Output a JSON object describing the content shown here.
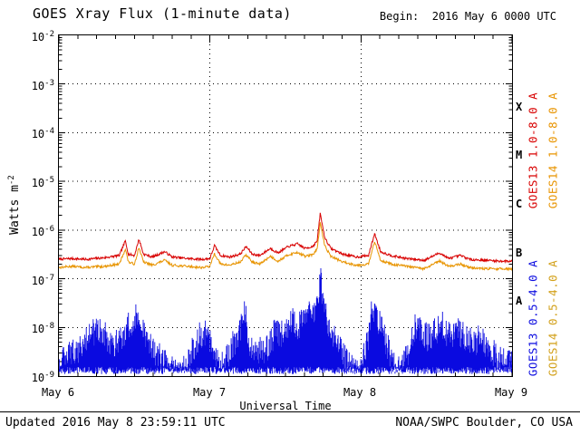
{
  "header": {
    "title": "GOES Xray Flux (1-minute data)",
    "begin": "Begin:  2016 May 6 0000 UTC"
  },
  "footer": {
    "updated": "Updated 2016 May 8 23:59:11 UTC",
    "source": "NOAA/SWPC Boulder, CO USA"
  },
  "chart_data": {
    "type": "line",
    "title": "GOES Xray Flux (1-minute data)",
    "xlabel": "Universal Time",
    "ylabel": "Watts m^-2",
    "ylabel_parts": {
      "base": "Watts m",
      "exp": "-2"
    },
    "x_tick_labels": [
      "May 6",
      "May 7",
      "May 8",
      "May 9"
    ],
    "x_tick_days": [
      0,
      1,
      2,
      3
    ],
    "y_tick_exponents": [
      -2,
      -3,
      -4,
      -5,
      -6,
      -7,
      -8,
      -9
    ],
    "ylim": [
      1e-09,
      0.01
    ],
    "x_range_days": [
      0,
      3
    ],
    "grid": {
      "h_exponents": [
        -3,
        -4,
        -5,
        -6,
        -7,
        -8
      ],
      "v_days": [
        1,
        2
      ]
    },
    "flare_classes": [
      {
        "label": "X",
        "mid_flux": 0.000316
      },
      {
        "label": "M",
        "mid_flux": 3.16e-05
      },
      {
        "label": "C",
        "mid_flux": 3.16e-06
      },
      {
        "label": "B",
        "mid_flux": 3.16e-07
      },
      {
        "label": "A",
        "mid_flux": 3.16e-08
      }
    ],
    "series": [
      {
        "name": "GOES13 1.0-8.0 A",
        "color": "#d80000",
        "render": "line",
        "points": [
          [
            0,
            2.5e-07
          ],
          [
            0.08,
            2.6e-07
          ],
          [
            0.18,
            2.5e-07
          ],
          [
            0.3,
            2.7e-07
          ],
          [
            0.4,
            3e-07
          ],
          [
            0.44,
            6e-07
          ],
          [
            0.46,
            3.2e-07
          ],
          [
            0.5,
            3e-07
          ],
          [
            0.53,
            6.5e-07
          ],
          [
            0.56,
            3.2e-07
          ],
          [
            0.62,
            2.8e-07
          ],
          [
            0.7,
            3.6e-07
          ],
          [
            0.75,
            2.8e-07
          ],
          [
            0.85,
            2.6e-07
          ],
          [
            0.95,
            2.5e-07
          ],
          [
            1.0,
            2.6e-07
          ],
          [
            1.03,
            4.8e-07
          ],
          [
            1.07,
            3e-07
          ],
          [
            1.13,
            2.8e-07
          ],
          [
            1.2,
            3.2e-07
          ],
          [
            1.24,
            4.6e-07
          ],
          [
            1.28,
            3.2e-07
          ],
          [
            1.33,
            3e-07
          ],
          [
            1.4,
            4.2e-07
          ],
          [
            1.45,
            3.4e-07
          ],
          [
            1.52,
            4.6e-07
          ],
          [
            1.58,
            5.2e-07
          ],
          [
            1.63,
            4.2e-07
          ],
          [
            1.68,
            4.6e-07
          ],
          [
            1.71,
            6e-07
          ],
          [
            1.73,
            2.2e-06
          ],
          [
            1.76,
            7e-07
          ],
          [
            1.8,
            4.2e-07
          ],
          [
            1.88,
            3.2e-07
          ],
          [
            1.97,
            2.8e-07
          ],
          [
            2.05,
            3e-07
          ],
          [
            2.09,
            8.5e-07
          ],
          [
            2.13,
            3.6e-07
          ],
          [
            2.2,
            3e-07
          ],
          [
            2.3,
            2.6e-07
          ],
          [
            2.42,
            2.4e-07
          ],
          [
            2.52,
            3.4e-07
          ],
          [
            2.58,
            2.6e-07
          ],
          [
            2.66,
            3e-07
          ],
          [
            2.72,
            2.5e-07
          ],
          [
            2.82,
            2.4e-07
          ],
          [
            2.92,
            2.3e-07
          ],
          [
            3,
            2.3e-07
          ]
        ]
      },
      {
        "name": "GOES14 1.0-8.0 A",
        "color": "#e89400",
        "render": "line",
        "points": [
          [
            0,
            1.7e-07
          ],
          [
            0.08,
            1.8e-07
          ],
          [
            0.18,
            1.7e-07
          ],
          [
            0.3,
            1.8e-07
          ],
          [
            0.4,
            2e-07
          ],
          [
            0.44,
            4.1e-07
          ],
          [
            0.46,
            2.2e-07
          ],
          [
            0.5,
            2e-07
          ],
          [
            0.53,
            4.4e-07
          ],
          [
            0.56,
            2.2e-07
          ],
          [
            0.62,
            1.9e-07
          ],
          [
            0.7,
            2.4e-07
          ],
          [
            0.75,
            1.9e-07
          ],
          [
            0.85,
            1.8e-07
          ],
          [
            0.95,
            1.7e-07
          ],
          [
            1.0,
            1.8e-07
          ],
          [
            1.03,
            3.3e-07
          ],
          [
            1.07,
            2e-07
          ],
          [
            1.13,
            1.9e-07
          ],
          [
            1.2,
            2.2e-07
          ],
          [
            1.24,
            3.1e-07
          ],
          [
            1.28,
            2.2e-07
          ],
          [
            1.33,
            2e-07
          ],
          [
            1.4,
            2.9e-07
          ],
          [
            1.45,
            2.3e-07
          ],
          [
            1.52,
            3.1e-07
          ],
          [
            1.58,
            3.5e-07
          ],
          [
            1.63,
            2.9e-07
          ],
          [
            1.68,
            3.1e-07
          ],
          [
            1.71,
            4.1e-07
          ],
          [
            1.73,
            1.4e-06
          ],
          [
            1.76,
            4.8e-07
          ],
          [
            1.8,
            2.9e-07
          ],
          [
            1.88,
            2.2e-07
          ],
          [
            1.97,
            1.9e-07
          ],
          [
            2.05,
            2e-07
          ],
          [
            2.09,
            5.8e-07
          ],
          [
            2.13,
            2.4e-07
          ],
          [
            2.2,
            2e-07
          ],
          [
            2.3,
            1.8e-07
          ],
          [
            2.42,
            1.6e-07
          ],
          [
            2.52,
            2.3e-07
          ],
          [
            2.58,
            1.8e-07
          ],
          [
            2.66,
            2e-07
          ],
          [
            2.72,
            1.7e-07
          ],
          [
            2.82,
            1.6e-07
          ],
          [
            2.92,
            1.6e-07
          ],
          [
            3,
            1.6e-07
          ]
        ]
      },
      {
        "name": "GOES13 0.5-4.0 A",
        "color": "#0a0ae0",
        "render": "noise-band",
        "points": [
          [
            0,
            2.5e-09
          ],
          [
            0.05,
            3e-09
          ],
          [
            0.1,
            4e-09
          ],
          [
            0.16,
            6e-09
          ],
          [
            0.22,
            1e-08
          ],
          [
            0.26,
            1.3e-08
          ],
          [
            0.3,
            9e-09
          ],
          [
            0.36,
            6e-09
          ],
          [
            0.42,
            8e-09
          ],
          [
            0.47,
            1.5e-08
          ],
          [
            0.51,
            2.6e-08
          ],
          [
            0.54,
            1.8e-08
          ],
          [
            0.58,
            8e-09
          ],
          [
            0.63,
            4e-09
          ],
          [
            0.7,
            2.5e-09
          ],
          [
            0.76,
            1.8e-09
          ],
          [
            0.82,
            1.7e-09
          ],
          [
            0.88,
            4e-09
          ],
          [
            0.93,
            9e-09
          ],
          [
            0.97,
            1.1e-08
          ],
          [
            1.0,
            7e-09
          ],
          [
            1.04,
            2.5e-09
          ],
          [
            1.09,
            2e-09
          ],
          [
            1.14,
            5e-09
          ],
          [
            1.19,
            8e-09
          ],
          [
            1.23,
            2.8e-08
          ],
          [
            1.26,
            7e-09
          ],
          [
            1.31,
            4e-09
          ],
          [
            1.38,
            5e-09
          ],
          [
            1.44,
            1.2e-08
          ],
          [
            1.49,
            9e-09
          ],
          [
            1.54,
            2e-08
          ],
          [
            1.59,
            1.4e-08
          ],
          [
            1.64,
            2.2e-08
          ],
          [
            1.69,
            3e-08
          ],
          [
            1.72,
            5e-08
          ],
          [
            1.73,
            1.5e-07
          ],
          [
            1.75,
            3.5e-08
          ],
          [
            1.79,
            1.5e-08
          ],
          [
            1.84,
            7e-09
          ],
          [
            1.89,
            3e-09
          ],
          [
            1.94,
            1.9e-09
          ],
          [
            2.0,
            1.7e-09
          ],
          [
            2.04,
            6e-09
          ],
          [
            2.07,
            2.8e-08
          ],
          [
            2.1,
            2.2e-08
          ],
          [
            2.14,
            1.3e-08
          ],
          [
            2.17,
            6e-09
          ],
          [
            2.21,
            2.2e-09
          ],
          [
            2.26,
            1.7e-09
          ],
          [
            2.31,
            4e-09
          ],
          [
            2.35,
            1.3e-08
          ],
          [
            2.39,
            1.1e-08
          ],
          [
            2.44,
            8e-09
          ],
          [
            2.49,
            1.1e-08
          ],
          [
            2.54,
            1.4e-08
          ],
          [
            2.59,
            8e-09
          ],
          [
            2.64,
            1.1e-08
          ],
          [
            2.69,
            9e-09
          ],
          [
            2.74,
            6e-09
          ],
          [
            2.79,
            8e-09
          ],
          [
            2.84,
            5e-09
          ],
          [
            2.89,
            3.5e-09
          ],
          [
            2.94,
            2.5e-09
          ],
          [
            3,
            2.2e-09
          ]
        ]
      },
      {
        "name": "GOES14 0.5-4.0 A",
        "color": "#d2a019",
        "render": "none",
        "points": []
      }
    ],
    "right_labels": [
      {
        "text": "GOES13 1.0-8.0 A",
        "color": "#d80000",
        "column": 0,
        "group": "long"
      },
      {
        "text": "GOES14 1.0-8.0 A",
        "color": "#e89400",
        "column": 1,
        "group": "long"
      },
      {
        "text": "GOES13 0.5-4.0 A",
        "color": "#0a0ae0",
        "column": 0,
        "group": "short"
      },
      {
        "text": "GOES14 0.5-4.0 A",
        "color": "#d2a019",
        "column": 1,
        "group": "short"
      }
    ]
  }
}
